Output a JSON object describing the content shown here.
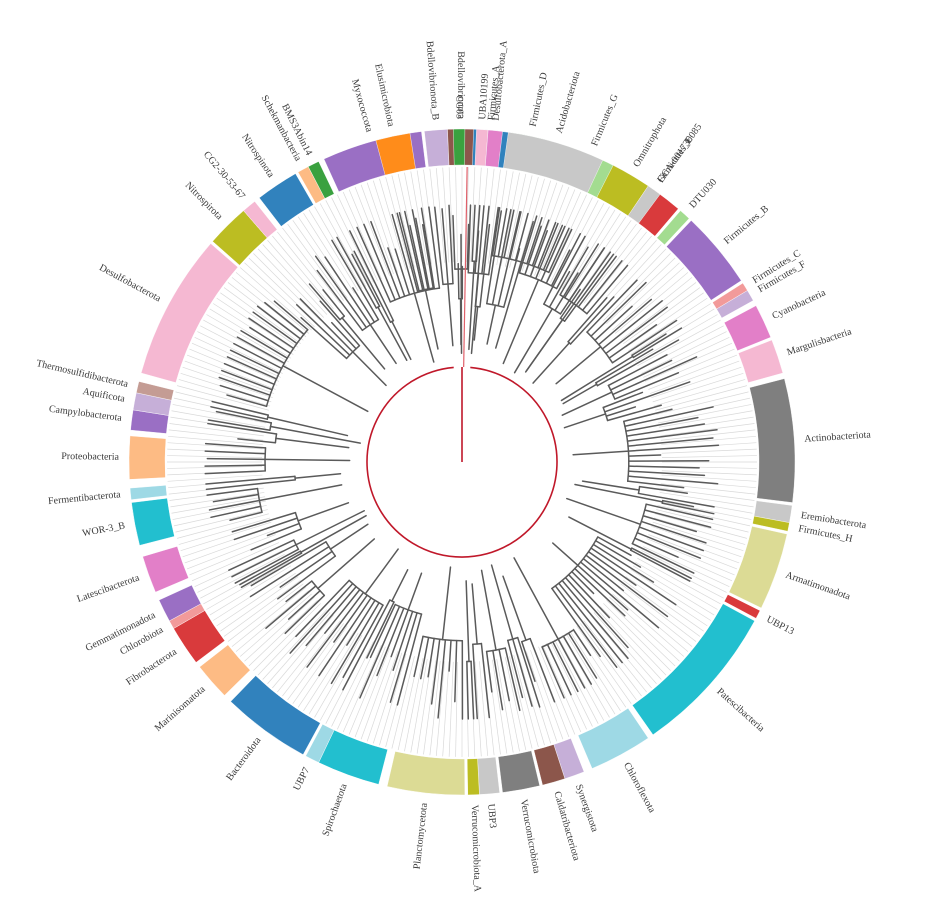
{
  "phyla": [
    {
      "name": "Firmicutes_A",
      "color": "#3182bd"
    },
    {
      "name": "Firmicutes_D",
      "color": "#3aa13f"
    },
    {
      "name": "Firmicutes_G",
      "color": "#a3dc90"
    },
    {
      "name": "Firmicutes_E",
      "color": "#d93a3c"
    },
    {
      "name": "DTU030",
      "color": "#a3dc90"
    },
    {
      "name": "Firmicutes_B",
      "color": "#9a6fc4"
    },
    {
      "name": "Firmicutes_C",
      "color": "#f29a9a"
    },
    {
      "name": "Firmicutes_F",
      "color": "#c6afd8"
    },
    {
      "name": "Cyanobacteria",
      "color": "#e27fc8"
    },
    {
      "name": "Margulisbacteria",
      "color": "#f5b8d2"
    },
    {
      "name": "Actinobacteriota",
      "color": "#7f7f7f"
    },
    {
      "name": "Eremiobacterota",
      "color": "#c8c8c8"
    },
    {
      "name": "Firmicutes_H",
      "color": "#bcbd22"
    },
    {
      "name": "Armatimonadota",
      "color": "#dcdb95"
    },
    {
      "name": "UBP13",
      "color": "#d93a3c"
    },
    {
      "name": "Patescibacteria",
      "color": "#22bfcf"
    },
    {
      "name": "Chloroflexota",
      "color": "#9ed9e5"
    },
    {
      "name": "Synergistota",
      "color": "#c6afd8"
    },
    {
      "name": "Caldatribacteriota",
      "color": "#8c564b"
    },
    {
      "name": "Verrucomicrobiota",
      "color": "#7f7f7f"
    },
    {
      "name": "UBP3",
      "color": "#c8c8c8"
    },
    {
      "name": "Verrucomicrobiota_A",
      "color": "#bcbd22"
    },
    {
      "name": "Planctomycetota",
      "color": "#dcdb95"
    },
    {
      "name": "Spirochaetota",
      "color": "#22bfcf"
    },
    {
      "name": "UBP7",
      "color": "#9ed9e5"
    },
    {
      "name": "Bacteroidota",
      "color": "#3182bd"
    },
    {
      "name": "Marinisomatota",
      "color": "#fdbb84"
    },
    {
      "name": "Fibrobacterota",
      "color": "#d93a3c"
    },
    {
      "name": "Chlorobiota",
      "color": "#f29a9a"
    },
    {
      "name": "Gemmatimonadota",
      "color": "#9a6fc4"
    },
    {
      "name": "Latescibacterota",
      "color": "#e27fc8"
    },
    {
      "name": "WOR-3_B",
      "color": "#22bfcf"
    },
    {
      "name": "Fermentibacterota",
      "color": "#9ed9e5"
    },
    {
      "name": "Proteobacteria",
      "color": "#fdbb84"
    },
    {
      "name": "Campylobacterota",
      "color": "#9a6fc4"
    },
    {
      "name": "Aquificota",
      "color": "#c6afd8"
    },
    {
      "name": "Thermosulfidibacterota",
      "color": "#c49c94"
    },
    {
      "name": "Desulfobacterota",
      "color": "#f5b8d2"
    },
    {
      "name": "Nitrospirota",
      "color": "#bcbd22"
    },
    {
      "name": "CG2-30-53-67",
      "color": "#f5b8d2"
    },
    {
      "name": "Nitrospinota",
      "color": "#3182bd"
    },
    {
      "name": "Schekmanbacteria",
      "color": "#fdbb84"
    },
    {
      "name": "BMS3Abin14",
      "color": "#3aa13f"
    },
    {
      "name": "Myxococcota",
      "color": "#9a6fc4"
    },
    {
      "name": "Bdellovibrionota_B",
      "color": "#c6afd8"
    },
    {
      "name": "Bdellovibrionota",
      "color": "#8c564b"
    },
    {
      "name": "UBA10199",
      "color": "#f5b8d2"
    },
    {
      "name": "Desulfobacterota_A",
      "color": "#e27fc8"
    },
    {
      "name": "Acidobacteriota",
      "color": "#c8c8c8"
    },
    {
      "name": "Omnitrophota",
      "color": "#bcbd22"
    },
    {
      "name": "GCA-001730085",
      "color": "#c8c8c8"
    },
    {
      "name": "Elusimicrobiota",
      "color": "#ff8c1a"
    },
    {
      "name": "CG03",
      "color": "#3aa13f"
    }
  ],
  "colors": {
    "branch": "#5a5a5a",
    "root_path": "#c0182a",
    "leaf_line": "#d9d9d9"
  }
}
